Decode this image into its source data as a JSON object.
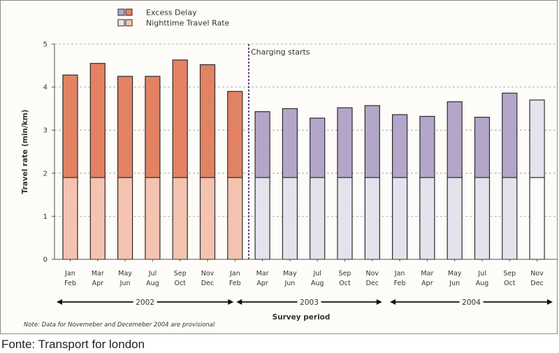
{
  "chart_data": {
    "type": "bar",
    "stacked": true,
    "categories": [
      [
        "Jan",
        "Feb"
      ],
      [
        "Mar",
        "Apr"
      ],
      [
        "May",
        "Jun"
      ],
      [
        "Jul",
        "Aug"
      ],
      [
        "Sep",
        "Oct"
      ],
      [
        "Nov",
        "Dec"
      ],
      [
        "Jan",
        "Feb"
      ],
      [
        "Mar",
        "Apr"
      ],
      [
        "May",
        "Jun"
      ],
      [
        "Jul",
        "Aug"
      ],
      [
        "Sep",
        "Oct"
      ],
      [
        "Nov",
        "Dec"
      ],
      [
        "Jan",
        "Feb"
      ],
      [
        "Mar",
        "Apr"
      ],
      [
        "May",
        "Jun"
      ],
      [
        "Jul",
        "Aug"
      ],
      [
        "Sep",
        "Oct"
      ],
      [
        "Nov",
        "Dec"
      ]
    ],
    "series": [
      {
        "name": "Nighttime Travel Rate",
        "values": [
          1.9,
          1.9,
          1.9,
          1.9,
          1.9,
          1.9,
          1.9,
          1.9,
          1.9,
          1.9,
          1.9,
          1.9,
          1.9,
          1.9,
          1.9,
          1.9,
          1.9,
          1.9
        ]
      },
      {
        "name": "Excess Delay",
        "values": [
          2.38,
          2.65,
          2.35,
          2.35,
          2.73,
          2.62,
          2.0,
          1.53,
          1.6,
          1.38,
          1.62,
          1.67,
          1.46,
          1.42,
          1.76,
          1.4,
          1.96,
          1.8
        ]
      }
    ],
    "ylabel": "Travel rate (min/km)",
    "xlabel": "Survey period",
    "ylim": [
      0,
      5
    ],
    "yticks": [
      "0",
      "1",
      "2",
      "3",
      "4",
      "5"
    ],
    "grid": true,
    "legend_position": "top-left",
    "annotation": "Charging starts",
    "annotation_after_index": 6,
    "years": [
      {
        "label": "2002",
        "from": 0,
        "to": 6
      },
      {
        "label": "2003",
        "from": 6,
        "to": 11
      },
      {
        "label": "2004",
        "from": 12,
        "to": 17
      }
    ],
    "note": "Note: Data for Novemeber and Decemeber 2004 are provisional",
    "colors": {
      "pre_excess": "#e58363",
      "pre_night": "#f8c5b1",
      "post_excess": "#b5a7cb",
      "post_night": "#e7e5ef",
      "last_night": "#ffffff",
      "outline": "#2a2a2a",
      "charging_line": "#6a4c8a",
      "grid": "#9a9a9a",
      "axis_text": "#333333"
    }
  },
  "source": "Fonte: Transport for london"
}
